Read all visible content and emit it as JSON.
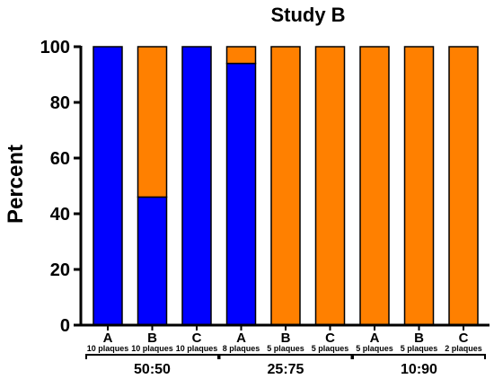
{
  "chart_data": {
    "type": "bar",
    "stacked": true,
    "title": "Study B",
    "xlabel": "",
    "ylabel": "Percent",
    "ylim": [
      0,
      100
    ],
    "yticks": [
      0,
      20,
      40,
      60,
      80,
      100
    ],
    "grid": false,
    "legend": "none",
    "categories": [
      "A",
      "B",
      "C",
      "A",
      "B",
      "C",
      "A",
      "B",
      "C"
    ],
    "sublabels": [
      "10 plaques",
      "10 plaques",
      "10 plaques",
      "8 plaques",
      "5 plaques",
      "5 plaques",
      "5 plaques",
      "5 plaques",
      "2 plaques"
    ],
    "groups": [
      {
        "label": "50:50",
        "categories": [
          0,
          1,
          2
        ]
      },
      {
        "label": "25:75",
        "categories": [
          3,
          4,
          5
        ]
      },
      {
        "label": "10:90",
        "categories": [
          6,
          7,
          8
        ]
      }
    ],
    "series": [
      {
        "color": "#0000ff",
        "values": [
          100,
          46,
          100,
          94,
          0,
          0,
          0,
          0,
          0
        ]
      },
      {
        "color": "#ff8000",
        "values": [
          0,
          54,
          0,
          6,
          100,
          100,
          100,
          100,
          100
        ]
      }
    ]
  }
}
